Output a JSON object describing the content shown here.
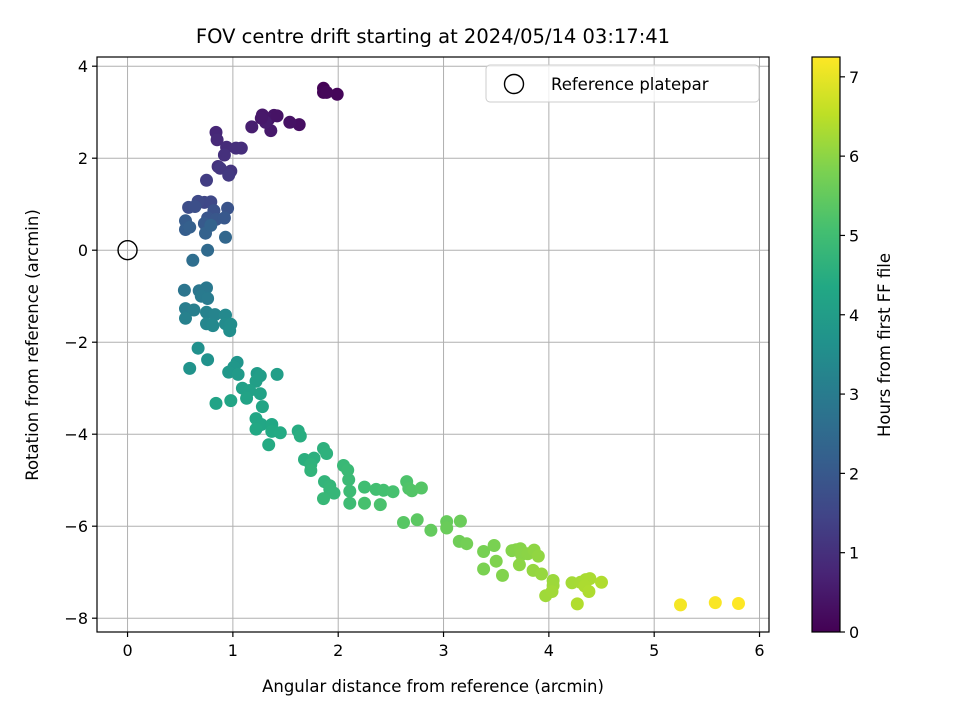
{
  "chart_data": {
    "type": "scatter",
    "title": "FOV centre drift starting at 2024/05/14 03:17:41",
    "xlabel": "Angular distance from reference (arcmin)",
    "ylabel": "Rotation from reference (arcmin)",
    "xlim": [
      -0.29,
      6.09
    ],
    "ylim": [
      -8.3,
      4.2
    ],
    "xticks": [
      0,
      1,
      2,
      3,
      4,
      5,
      6
    ],
    "xtick_labels": [
      "0",
      "1",
      "2",
      "3",
      "4",
      "5",
      "6"
    ],
    "yticks": [
      4,
      2,
      0,
      -2,
      -4,
      -6,
      -8
    ],
    "ytick_labels": [
      "4",
      "2",
      "0",
      "−2",
      "−4",
      "−6",
      "−8"
    ],
    "grid": true,
    "colormap": "viridis",
    "colorbar": {
      "label": "Hours from first FF file",
      "min": 0,
      "max": 7.25,
      "ticks": [
        0,
        1,
        2,
        3,
        4,
        5,
        6,
        7
      ],
      "tick_labels": [
        "0",
        "1",
        "2",
        "3",
        "4",
        "5",
        "6",
        "7"
      ]
    },
    "legend": {
      "entries": [
        "Reference platepar"
      ],
      "position": "top-right"
    },
    "reference_point": {
      "x": 0,
      "y": 0
    },
    "points": [
      {
        "x": 1.86,
        "y": 3.52,
        "t": 0.05
      },
      {
        "x": 1.86,
        "y": 3.43,
        "t": 0.08
      },
      {
        "x": 1.99,
        "y": 3.39,
        "t": 0.1
      },
      {
        "x": 1.89,
        "y": 3.43,
        "t": 0.12
      },
      {
        "x": 1.63,
        "y": 2.73,
        "t": 0.3
      },
      {
        "x": 1.54,
        "y": 2.78,
        "t": 0.35
      },
      {
        "x": 1.39,
        "y": 2.93,
        "t": 0.4
      },
      {
        "x": 1.34,
        "y": 2.85,
        "t": 0.43
      },
      {
        "x": 1.28,
        "y": 2.94,
        "t": 0.46
      },
      {
        "x": 1.36,
        "y": 2.6,
        "t": 0.5
      },
      {
        "x": 1.31,
        "y": 2.78,
        "t": 0.55
      },
      {
        "x": 1.18,
        "y": 2.68,
        "t": 0.6
      },
      {
        "x": 1.27,
        "y": 2.87,
        "t": 0.48
      },
      {
        "x": 1.42,
        "y": 2.92,
        "t": 0.38
      },
      {
        "x": 0.84,
        "y": 2.56,
        "t": 0.8
      },
      {
        "x": 0.85,
        "y": 2.4,
        "t": 0.85
      },
      {
        "x": 0.94,
        "y": 2.24,
        "t": 0.9
      },
      {
        "x": 1.08,
        "y": 2.22,
        "t": 0.95
      },
      {
        "x": 1.03,
        "y": 2.22,
        "t": 0.98
      },
      {
        "x": 0.92,
        "y": 2.07,
        "t": 1.0
      },
      {
        "x": 0.86,
        "y": 1.82,
        "t": 1.05
      },
      {
        "x": 0.98,
        "y": 1.72,
        "t": 1.1
      },
      {
        "x": 0.88,
        "y": 1.78,
        "t": 1.15
      },
      {
        "x": 0.96,
        "y": 1.63,
        "t": 1.2
      },
      {
        "x": 0.75,
        "y": 1.52,
        "t": 1.3
      },
      {
        "x": 0.73,
        "y": 1.04,
        "t": 1.5
      },
      {
        "x": 0.79,
        "y": 1.05,
        "t": 1.55
      },
      {
        "x": 0.67,
        "y": 1.06,
        "t": 1.6
      },
      {
        "x": 0.58,
        "y": 0.93,
        "t": 1.7
      },
      {
        "x": 0.64,
        "y": 0.95,
        "t": 1.75
      },
      {
        "x": 0.82,
        "y": 0.86,
        "t": 1.8
      },
      {
        "x": 0.95,
        "y": 0.91,
        "t": 1.85
      },
      {
        "x": 0.76,
        "y": 0.7,
        "t": 1.9
      },
      {
        "x": 0.84,
        "y": 0.67,
        "t": 1.95
      },
      {
        "x": 0.92,
        "y": 0.7,
        "t": 2.0
      },
      {
        "x": 0.73,
        "y": 0.58,
        "t": 2.05
      },
      {
        "x": 0.55,
        "y": 0.64,
        "t": 2.1
      },
      {
        "x": 0.55,
        "y": 0.45,
        "t": 2.15
      },
      {
        "x": 0.59,
        "y": 0.5,
        "t": 2.2
      },
      {
        "x": 0.74,
        "y": 0.37,
        "t": 2.25
      },
      {
        "x": 0.79,
        "y": 0.54,
        "t": 2.3
      },
      {
        "x": 0.93,
        "y": 0.28,
        "t": 2.4
      },
      {
        "x": 0.76,
        "y": 0.0,
        "t": 2.5
      },
      {
        "x": 0.62,
        "y": -0.22,
        "t": 2.6
      },
      {
        "x": 0.54,
        "y": -0.87,
        "t": 2.8
      },
      {
        "x": 0.68,
        "y": -0.88,
        "t": 2.85
      },
      {
        "x": 0.75,
        "y": -0.82,
        "t": 2.9
      },
      {
        "x": 0.7,
        "y": -1.0,
        "t": 2.95
      },
      {
        "x": 0.76,
        "y": -1.05,
        "t": 3.0
      },
      {
        "x": 0.55,
        "y": -1.27,
        "t": 3.05
      },
      {
        "x": 0.63,
        "y": -1.3,
        "t": 3.1
      },
      {
        "x": 0.55,
        "y": -1.48,
        "t": 3.15
      },
      {
        "x": 0.75,
        "y": -1.35,
        "t": 3.2
      },
      {
        "x": 0.83,
        "y": -1.4,
        "t": 3.25
      },
      {
        "x": 0.75,
        "y": -1.6,
        "t": 3.3
      },
      {
        "x": 0.81,
        "y": -1.64,
        "t": 3.35
      },
      {
        "x": 0.93,
        "y": -1.41,
        "t": 3.4
      },
      {
        "x": 0.93,
        "y": -1.6,
        "t": 3.45
      },
      {
        "x": 0.98,
        "y": -1.61,
        "t": 3.5
      },
      {
        "x": 0.97,
        "y": -1.75,
        "t": 3.55
      },
      {
        "x": 0.67,
        "y": -2.13,
        "t": 3.6
      },
      {
        "x": 0.76,
        "y": -2.38,
        "t": 3.65
      },
      {
        "x": 0.59,
        "y": -2.57,
        "t": 3.7
      },
      {
        "x": 1.04,
        "y": -2.44,
        "t": 3.75
      },
      {
        "x": 1.01,
        "y": -2.54,
        "t": 3.8
      },
      {
        "x": 0.96,
        "y": -2.65,
        "t": 3.85
      },
      {
        "x": 1.05,
        "y": -2.7,
        "t": 3.9
      },
      {
        "x": 1.23,
        "y": -2.68,
        "t": 3.95
      },
      {
        "x": 1.26,
        "y": -2.73,
        "t": 4.0
      },
      {
        "x": 1.42,
        "y": -2.7,
        "t": 4.02
      },
      {
        "x": 1.22,
        "y": -2.85,
        "t": 4.05
      },
      {
        "x": 1.09,
        "y": -3.0,
        "t": 4.1
      },
      {
        "x": 1.16,
        "y": -3.05,
        "t": 4.12
      },
      {
        "x": 1.26,
        "y": -3.12,
        "t": 4.15
      },
      {
        "x": 1.13,
        "y": -3.22,
        "t": 4.18
      },
      {
        "x": 0.84,
        "y": -3.33,
        "t": 4.2
      },
      {
        "x": 0.98,
        "y": -3.27,
        "t": 4.22
      },
      {
        "x": 1.28,
        "y": -3.4,
        "t": 4.25
      },
      {
        "x": 1.22,
        "y": -3.66,
        "t": 4.28
      },
      {
        "x": 1.27,
        "y": -3.79,
        "t": 4.3
      },
      {
        "x": 1.37,
        "y": -3.79,
        "t": 4.32
      },
      {
        "x": 1.22,
        "y": -3.89,
        "t": 4.35
      },
      {
        "x": 1.37,
        "y": -3.94,
        "t": 4.38
      },
      {
        "x": 1.45,
        "y": -3.97,
        "t": 4.4
      },
      {
        "x": 1.34,
        "y": -4.23,
        "t": 4.42
      },
      {
        "x": 1.62,
        "y": -3.93,
        "t": 4.45
      },
      {
        "x": 1.64,
        "y": -4.04,
        "t": 4.5
      },
      {
        "x": 1.68,
        "y": -4.55,
        "t": 4.55
      },
      {
        "x": 1.77,
        "y": -4.52,
        "t": 4.58
      },
      {
        "x": 1.86,
        "y": -4.31,
        "t": 4.6
      },
      {
        "x": 1.89,
        "y": -4.42,
        "t": 4.62
      },
      {
        "x": 1.74,
        "y": -4.66,
        "t": 4.65
      },
      {
        "x": 1.74,
        "y": -4.79,
        "t": 4.7
      },
      {
        "x": 1.87,
        "y": -5.03,
        "t": 4.72
      },
      {
        "x": 1.92,
        "y": -5.12,
        "t": 4.75
      },
      {
        "x": 1.92,
        "y": -5.2,
        "t": 4.78
      },
      {
        "x": 1.96,
        "y": -5.28,
        "t": 4.8
      },
      {
        "x": 1.86,
        "y": -5.4,
        "t": 4.82
      },
      {
        "x": 2.05,
        "y": -4.68,
        "t": 4.85
      },
      {
        "x": 2.09,
        "y": -4.78,
        "t": 4.88
      },
      {
        "x": 2.1,
        "y": -4.99,
        "t": 4.9
      },
      {
        "x": 2.11,
        "y": -5.24,
        "t": 4.92
      },
      {
        "x": 2.11,
        "y": -5.5,
        "t": 4.95
      },
      {
        "x": 2.25,
        "y": -5.15,
        "t": 5.0
      },
      {
        "x": 2.36,
        "y": -5.2,
        "t": 5.05
      },
      {
        "x": 2.43,
        "y": -5.22,
        "t": 5.08
      },
      {
        "x": 2.52,
        "y": -5.25,
        "t": 5.1
      },
      {
        "x": 2.25,
        "y": -5.5,
        "t": 5.12
      },
      {
        "x": 2.4,
        "y": -5.53,
        "t": 5.15
      },
      {
        "x": 2.65,
        "y": -5.03,
        "t": 5.2
      },
      {
        "x": 2.67,
        "y": -5.18,
        "t": 5.25
      },
      {
        "x": 2.7,
        "y": -5.23,
        "t": 5.28
      },
      {
        "x": 2.79,
        "y": -5.17,
        "t": 5.3
      },
      {
        "x": 2.62,
        "y": -5.92,
        "t": 5.35
      },
      {
        "x": 2.75,
        "y": -5.86,
        "t": 5.4
      },
      {
        "x": 2.88,
        "y": -6.09,
        "t": 5.5
      },
      {
        "x": 3.03,
        "y": -5.9,
        "t": 5.55
      },
      {
        "x": 3.03,
        "y": -6.04,
        "t": 5.58
      },
      {
        "x": 3.16,
        "y": -5.89,
        "t": 5.6
      },
      {
        "x": 3.15,
        "y": -6.33,
        "t": 5.65
      },
      {
        "x": 3.22,
        "y": -6.38,
        "t": 5.7
      },
      {
        "x": 3.38,
        "y": -6.55,
        "t": 5.75
      },
      {
        "x": 3.48,
        "y": -6.42,
        "t": 5.78
      },
      {
        "x": 3.38,
        "y": -6.93,
        "t": 5.8
      },
      {
        "x": 3.5,
        "y": -6.76,
        "t": 5.85
      },
      {
        "x": 3.56,
        "y": -7.07,
        "t": 5.88
      },
      {
        "x": 3.65,
        "y": -6.53,
        "t": 5.9
      },
      {
        "x": 3.69,
        "y": -6.51,
        "t": 5.92
      },
      {
        "x": 3.73,
        "y": -6.49,
        "t": 5.94
      },
      {
        "x": 3.74,
        "y": -6.62,
        "t": 5.96
      },
      {
        "x": 3.8,
        "y": -6.6,
        "t": 5.98
      },
      {
        "x": 3.72,
        "y": -6.84,
        "t": 6.0
      },
      {
        "x": 3.86,
        "y": -6.52,
        "t": 6.02
      },
      {
        "x": 3.9,
        "y": -6.65,
        "t": 6.05
      },
      {
        "x": 3.85,
        "y": -6.96,
        "t": 6.08
      },
      {
        "x": 3.93,
        "y": -7.04,
        "t": 6.1
      },
      {
        "x": 4.04,
        "y": -7.18,
        "t": 6.15
      },
      {
        "x": 4.04,
        "y": -7.29,
        "t": 6.18
      },
      {
        "x": 3.97,
        "y": -7.51,
        "t": 6.2
      },
      {
        "x": 4.03,
        "y": -7.42,
        "t": 6.22
      },
      {
        "x": 4.22,
        "y": -7.23,
        "t": 6.25
      },
      {
        "x": 4.3,
        "y": -7.22,
        "t": 6.28
      },
      {
        "x": 4.35,
        "y": -7.16,
        "t": 6.3
      },
      {
        "x": 4.39,
        "y": -7.14,
        "t": 6.32
      },
      {
        "x": 4.34,
        "y": -7.3,
        "t": 6.34
      },
      {
        "x": 4.38,
        "y": -7.42,
        "t": 6.36
      },
      {
        "x": 4.5,
        "y": -7.22,
        "t": 6.38
      },
      {
        "x": 4.27,
        "y": -7.69,
        "t": 6.4
      },
      {
        "x": 5.25,
        "y": -7.71,
        "t": 7.15
      },
      {
        "x": 5.58,
        "y": -7.66,
        "t": 7.2
      },
      {
        "x": 5.8,
        "y": -7.68,
        "t": 7.25
      }
    ]
  }
}
